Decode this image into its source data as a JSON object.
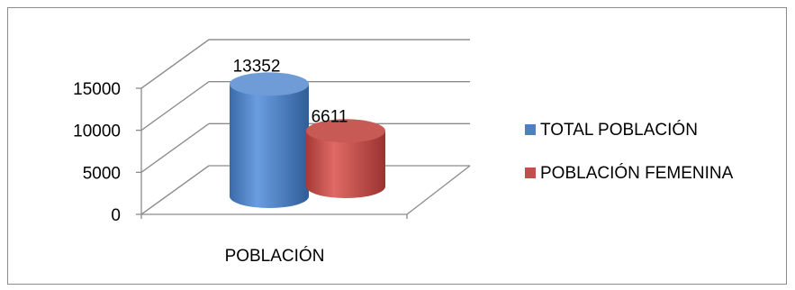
{
  "chart_data": {
    "type": "bar",
    "style": "3d-cylinder",
    "categories": [
      "POBLACIÓN"
    ],
    "series": [
      {
        "name": "TOTAL POBLACIÓN",
        "values": [
          13352
        ],
        "color": "#4f81bd"
      },
      {
        "name": "POBLACIÓN FEMENINA",
        "values": [
          6611
        ],
        "color": "#c0504d"
      }
    ],
    "data_labels": [
      "13352",
      "6611"
    ],
    "y_ticks": [
      "0",
      "5000",
      "10000",
      "15000"
    ],
    "ylim": [
      0,
      20000
    ],
    "grid": true,
    "legend_position": "right",
    "title": "",
    "xlabel": "",
    "ylabel": ""
  }
}
